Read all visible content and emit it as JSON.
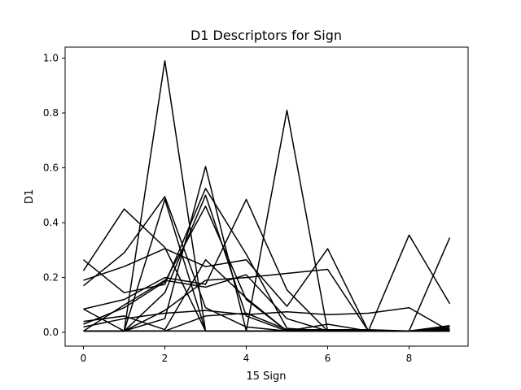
{
  "chart_data": {
    "type": "line",
    "title": "D1 Descriptors for Sign",
    "xlabel": "15 Sign",
    "ylabel": "D1",
    "xlim": [
      -0.45,
      9.45
    ],
    "ylim": [
      -0.05,
      1.04
    ],
    "xticks": [
      0,
      2,
      4,
      6,
      8
    ],
    "xtick_labels": [
      "0",
      "2",
      "4",
      "6",
      "8"
    ],
    "yticks": [
      0.0,
      0.2,
      0.4,
      0.6,
      0.8,
      1.0
    ],
    "ytick_labels": [
      "0.0",
      "0.2",
      "0.4",
      "0.6",
      "0.8",
      "1.0"
    ],
    "grid": false,
    "color": "#000000",
    "x": [
      0,
      1,
      2,
      3,
      4,
      5,
      6,
      7,
      8,
      9
    ],
    "series": [
      {
        "values": [
          0.265,
          0.145,
          0.175,
          0.525,
          0.285,
          0.015,
          0.005,
          0.005,
          0.355,
          0.105
        ]
      },
      {
        "values": [
          0.005,
          0.005,
          0.99,
          0.005,
          0.005,
          0.005,
          0.005,
          0.005,
          0.005,
          0.005
        ]
      },
      {
        "values": [
          0.005,
          0.005,
          0.005,
          0.005,
          0.005,
          0.81,
          0.005,
          0.005,
          0.005,
          0.345
        ]
      },
      {
        "values": [
          0.005,
          0.005,
          0.005,
          0.005,
          0.005,
          0.005,
          0.005,
          0.005,
          0.005,
          0.005
        ]
      },
      {
        "values": [
          0.225,
          0.45,
          0.31,
          0.005,
          0.005,
          0.005,
          0.005,
          0.005,
          0.005,
          0.005
        ]
      },
      {
        "values": [
          0.085,
          0.005,
          0.485,
          0.005,
          0.005,
          0.005,
          0.005,
          0.005,
          0.005,
          0.015
        ]
      },
      {
        "values": [
          0.17,
          0.29,
          0.495,
          0.09,
          0.02,
          0.005,
          0.005,
          0.005,
          0.005,
          0.01
        ]
      },
      {
        "values": [
          0.005,
          0.005,
          0.05,
          0.605,
          0.005,
          0.005,
          0.005,
          0.005,
          0.005,
          0.005
        ]
      },
      {
        "values": [
          0.03,
          0.09,
          0.185,
          0.46,
          0.12,
          0.005,
          0.005,
          0.005,
          0.005,
          0.02
        ]
      },
      {
        "values": [
          0.005,
          0.005,
          0.145,
          0.5,
          0.06,
          0.005,
          0.005,
          0.005,
          0.005,
          0.025
        ]
      },
      {
        "values": [
          0.085,
          0.12,
          0.2,
          0.175,
          0.485,
          0.155,
          0.005,
          0.005,
          0.005,
          0.005
        ]
      },
      {
        "values": [
          0.19,
          0.24,
          0.305,
          0.24,
          0.265,
          0.095,
          0.305,
          0.005,
          0.005,
          0.005
        ]
      },
      {
        "values": [
          0.02,
          0.05,
          0.07,
          0.08,
          0.065,
          0.075,
          0.065,
          0.07,
          0.09,
          0.005
        ]
      },
      {
        "values": [
          0.005,
          0.005,
          0.005,
          0.06,
          0.07,
          0.01,
          0.01,
          0.01,
          0.005,
          0.005
        ]
      },
      {
        "values": [
          0.005,
          0.1,
          0.19,
          0.165,
          0.21,
          0.05,
          0.005,
          0.005,
          0.005,
          0.005
        ]
      },
      {
        "values": [
          0.005,
          0.005,
          0.08,
          0.19,
          0.2,
          0.215,
          0.23,
          0.005,
          0.005,
          0.005
        ]
      },
      {
        "values": [
          0.04,
          0.06,
          0.01,
          0.265,
          0.125,
          0.005,
          0.03,
          0.005,
          0.005,
          0.005
        ]
      }
    ]
  }
}
